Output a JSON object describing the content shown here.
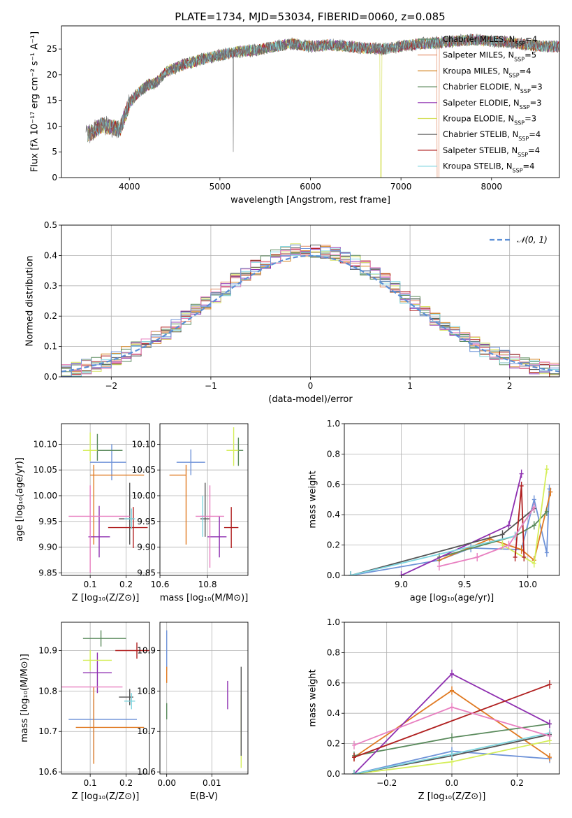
{
  "figure_title": "PLATE=1734, MJD=53034, FIBERID=0060, z=0.085",
  "models": [
    {
      "name": "Chabrier MILES",
      "nssp": "4",
      "color": "#5f8d72"
    },
    {
      "name": "Salpeter MILES",
      "nssp": "5",
      "color": "#e38f6a"
    },
    {
      "name": "Kroupa MILES",
      "nssp": "4",
      "color": "#d48320"
    },
    {
      "name": "Chabrier ELODIE",
      "nssp": "3",
      "color": "#5e8a5c"
    },
    {
      "name": "Salpeter ELODIE",
      "nssp": "3",
      "color": "#8e2fb0"
    },
    {
      "name": "Kroupa ELODIE",
      "nssp": "3",
      "color": "#d6e05e"
    },
    {
      "name": "Chabrier STELIB",
      "nssp": "4",
      "color": "#666666"
    },
    {
      "name": "Salpeter STELIB",
      "nssp": "4",
      "color": "#b02020"
    },
    {
      "name": "Kroupa STELIB",
      "nssp": "4",
      "color": "#7fd6e0"
    }
  ],
  "point_colors": [
    "#6f93d8",
    "#e07a22",
    "#5a8a5c",
    "#8e2fb0",
    "#d5ee5a",
    "#555555",
    "#b02020",
    "#7fd6e0",
    "#e87fc0"
  ],
  "chart_data": [
    {
      "id": "spectrum",
      "type": "line",
      "xlabel": "wavelength [Angstrom, rest frame]",
      "ylabel": "Flux [fλ 10⁻¹⁷ erg cm⁻² s⁻¹ A⁻¹]",
      "xlim": [
        3250,
        8750
      ],
      "ylim": [
        0,
        29.5
      ],
      "xticks": [
        4000,
        5000,
        6000,
        7000,
        8000
      ],
      "yticks": [
        0,
        5,
        10,
        15,
        20,
        25
      ],
      "x": [
        3550,
        3700,
        3800,
        3900,
        3950,
        4000,
        4100,
        4200,
        4300,
        4400,
        4600,
        4800,
        5000,
        5200,
        5400,
        5600,
        5800,
        6000,
        6200,
        6400,
        6600,
        6800,
        7000,
        7200,
        7400,
        7600,
        7800,
        8000,
        8200,
        8400,
        8600
      ],
      "y": [
        8.5,
        10.2,
        9.8,
        9.5,
        12.0,
        14.5,
        16.5,
        18.0,
        18.5,
        20.5,
        22.0,
        23.0,
        23.8,
        24.5,
        24.8,
        25.5,
        26.0,
        25.5,
        25.8,
        25.5,
        25.2,
        25.0,
        25.5,
        26.0,
        26.2,
        26.5,
        26.8,
        26.5,
        26.3,
        25.8,
        25.5
      ],
      "grid": false,
      "legend": "top-right"
    },
    {
      "id": "residuals",
      "type": "histogram",
      "xlabel": "(data-model)/error",
      "ylabel": "Normed distribution",
      "xlim": [
        -2.5,
        2.5
      ],
      "ylim": [
        0,
        0.5
      ],
      "xticks": [
        -2,
        -1,
        0,
        1,
        2
      ],
      "yticks": [
        0.0,
        0.1,
        0.2,
        0.3,
        0.4,
        0.5
      ],
      "curve_label": "𝒩(0, 1)",
      "grid": true,
      "legend": "top-right"
    },
    {
      "id": "age_vs_Z",
      "type": "scatter",
      "xlabel": "Z [log₁₀(Z/Z⊙)]",
      "ylabel": "age  [log₁₀(age/yr)]",
      "xlim": [
        0.02,
        0.265
      ],
      "ylim": [
        9.845,
        10.14
      ],
      "xticks": [
        0.1,
        0.2
      ],
      "yticks": [
        9.85,
        9.9,
        9.95,
        10.0,
        10.05,
        10.1
      ],
      "points": [
        {
          "x": 0.16,
          "y": 10.065,
          "xerr": [
            0.06,
            0.04
          ],
          "yerr": [
            0.035,
            0.035
          ]
        },
        {
          "x": 0.11,
          "y": 10.04,
          "xerr": [
            0.01,
            0.14
          ],
          "yerr": [
            0.135,
            0.02
          ]
        },
        {
          "x": 0.12,
          "y": 10.088,
          "xerr": [
            0.03,
            0.07
          ],
          "yerr": [
            0.02,
            0.032
          ]
        },
        {
          "x": 0.125,
          "y": 9.92,
          "xerr": [
            0.03,
            0.03
          ],
          "yerr": [
            0.04,
            0.06
          ]
        },
        {
          "x": 0.1,
          "y": 10.088,
          "xerr": [
            0.02,
            0.02
          ],
          "yerr": [
            0.02,
            0.035
          ]
        },
        {
          "x": 0.21,
          "y": 9.955,
          "xerr": [
            0.03,
            0.01
          ],
          "yerr": [
            0.05,
            0.07
          ]
        },
        {
          "x": 0.22,
          "y": 9.938,
          "xerr": [
            0.07,
            0.04
          ],
          "yerr": [
            0.04,
            0.04
          ]
        },
        {
          "x": 0.215,
          "y": 9.955,
          "xerr": [
            0.02,
            0.01
          ],
          "yerr": [
            0.02,
            0.02
          ]
        },
        {
          "x": 0.1,
          "y": 9.96,
          "xerr": [
            0.06,
            0.11
          ],
          "yerr": [
            0.11,
            0.06
          ]
        }
      ]
    },
    {
      "id": "age_vs_mass",
      "type": "scatter",
      "xlabel": "mass [log₁₀(M/M⊙)]",
      "ylabel": "",
      "xlim": [
        10.6,
        10.97
      ],
      "ylim": [
        9.845,
        10.14
      ],
      "xticks": [
        10.6,
        10.8
      ],
      "yticks": [
        9.85,
        9.9,
        9.95,
        10.0,
        10.05,
        10.1
      ],
      "points": [
        {
          "x": 10.73,
          "y": 10.065,
          "xerr": [
            0.06,
            0.06
          ],
          "yerr": [
            0.025,
            0.025
          ]
        },
        {
          "x": 10.71,
          "y": 10.04,
          "xerr": [
            0.07,
            0.0
          ],
          "yerr": [
            0.135,
            0.02
          ]
        },
        {
          "x": 10.93,
          "y": 10.088,
          "xerr": [
            0.0,
            0.02
          ],
          "yerr": [
            0.03,
            0.025
          ]
        },
        {
          "x": 10.85,
          "y": 9.92,
          "xerr": [
            0.05,
            0.03
          ],
          "yerr": [
            0.04,
            0.04
          ]
        },
        {
          "x": 10.91,
          "y": 10.088,
          "xerr": [
            0.03,
            0.02
          ],
          "yerr": [
            0.03,
            0.045
          ]
        },
        {
          "x": 10.79,
          "y": 9.955,
          "xerr": [
            0.02,
            0.02
          ],
          "yerr": [
            0.035,
            0.07
          ]
        },
        {
          "x": 10.9,
          "y": 9.938,
          "xerr": [
            0.03,
            0.03
          ],
          "yerr": [
            0.04,
            0.04
          ]
        },
        {
          "x": 10.78,
          "y": 9.96,
          "xerr": [
            0.01,
            0.01
          ],
          "yerr": [
            0.04,
            0.04
          ]
        },
        {
          "x": 10.81,
          "y": 9.96,
          "xerr": [
            0.06,
            0.06
          ],
          "yerr": [
            0.1,
            0.06
          ]
        }
      ]
    },
    {
      "id": "weight_vs_age",
      "type": "line",
      "xlabel": "age  [log₁₀(age/yr)]",
      "ylabel": "mass weight",
      "xlim": [
        8.55,
        10.25
      ],
      "ylim": [
        0,
        1.0
      ],
      "xticks": [
        9.0,
        9.5,
        10.0
      ],
      "yticks": [
        0.0,
        0.2,
        0.4,
        0.6,
        0.8,
        1.0
      ],
      "grid": true,
      "series": [
        {
          "x": [
            8.6,
            9.3,
            9.55,
            9.95,
            10.05,
            10.15,
            10.17
          ],
          "y": [
            0.0,
            0.1,
            0.18,
            0.17,
            0.5,
            0.15,
            0.57
          ]
        },
        {
          "x": [
            9.3,
            9.7,
            9.95,
            10.05,
            10.18
          ],
          "y": [
            0.1,
            0.24,
            0.17,
            0.1,
            0.55
          ]
        },
        {
          "x": [
            9.3,
            9.9,
            10.05,
            10.15
          ],
          "y": [
            0.12,
            0.26,
            0.33,
            0.42
          ]
        },
        {
          "x": [
            9.0,
            9.85,
            9.95
          ],
          "y": [
            0.0,
            0.33,
            0.67
          ]
        },
        {
          "x": [
            9.8,
            10.05,
            10.15
          ],
          "y": [
            0.2,
            0.08,
            0.7
          ]
        },
        {
          "x": [
            8.6,
            9.8,
            10.05
          ],
          "y": [
            0.0,
            0.27,
            0.44
          ]
        },
        {
          "x": [
            9.9,
            9.95,
            9.97
          ],
          "y": [
            0.12,
            0.59,
            0.12
          ]
        },
        {
          "x": [
            8.6,
            9.9,
            10.05
          ],
          "y": [
            0.0,
            0.26,
            0.45
          ]
        },
        {
          "x": [
            9.3,
            9.6,
            9.85,
            10.05
          ],
          "y": [
            0.06,
            0.12,
            0.2,
            0.45
          ]
        }
      ]
    },
    {
      "id": "mass_vs_Z",
      "type": "scatter",
      "xlabel": "Z [log₁₀(Z/Z⊙)]",
      "ylabel": "mass [log₁₀(M/M⊙)]",
      "xlim": [
        0.02,
        0.265
      ],
      "ylim": [
        10.595,
        10.97
      ],
      "xticks": [
        0.1,
        0.2
      ],
      "yticks": [
        10.6,
        10.7,
        10.8,
        10.9
      ],
      "points": [
        {
          "x": 0.11,
          "y": 10.73,
          "xerr": [
            0.07,
            0.12
          ],
          "yerr": [
            0.1,
            0.05
          ]
        },
        {
          "x": 0.11,
          "y": 10.71,
          "xerr": [
            0.05,
            0.14
          ],
          "yerr": [
            0.09,
            0.1
          ]
        },
        {
          "x": 0.13,
          "y": 10.93,
          "xerr": [
            0.05,
            0.07
          ],
          "yerr": [
            0.02,
            0.02
          ]
        },
        {
          "x": 0.12,
          "y": 10.845,
          "xerr": [
            0.04,
            0.04
          ],
          "yerr": [
            0.05,
            0.05
          ]
        },
        {
          "x": 0.1,
          "y": 10.876,
          "xerr": [
            0.02,
            0.06
          ],
          "yerr": [
            0.025,
            0.025
          ]
        },
        {
          "x": 0.21,
          "y": 10.785,
          "xerr": [
            0.03,
            0.01
          ],
          "yerr": [
            0.02,
            0.02
          ]
        },
        {
          "x": 0.23,
          "y": 10.9,
          "xerr": [
            0.06,
            0.05
          ],
          "yerr": [
            0.02,
            0.02
          ]
        },
        {
          "x": 0.215,
          "y": 10.775,
          "xerr": [
            0.02,
            0.01
          ],
          "yerr": [
            0.02,
            0.02
          ]
        },
        {
          "x": 0.11,
          "y": 10.81,
          "xerr": [
            0.09,
            0.08
          ],
          "yerr": [
            0.0,
            0.0
          ]
        }
      ]
    },
    {
      "id": "mass_vs_ebv",
      "type": "scatter",
      "xlabel": "E(B-V)",
      "ylabel": "",
      "xlim": [
        -0.0015,
        0.018
      ],
      "ylim": [
        10.595,
        10.97
      ],
      "xticks": [
        0.0,
        0.01
      ],
      "yticks": [
        10.6,
        10.7,
        10.8,
        10.9
      ],
      "points": [
        {
          "x": 0.0,
          "y": 10.9,
          "xerr": [
            0,
            0
          ],
          "yerr": [
            0.05,
            0.05
          ]
        },
        {
          "x": 0.0,
          "y": 10.84,
          "xerr": [
            0,
            0
          ],
          "yerr": [
            0.02,
            0.02
          ]
        },
        {
          "x": 0.0,
          "y": 10.75,
          "xerr": [
            0,
            0
          ],
          "yerr": [
            0.02,
            0.02
          ]
        },
        {
          "x": 0.0135,
          "y": 10.79,
          "xerr": [
            0,
            0
          ],
          "yerr": [
            0.035,
            0.035
          ]
        },
        {
          "x": 0.0165,
          "y": 10.7,
          "xerr": [
            0,
            0
          ],
          "yerr": [
            0.09,
            0.09
          ]
        },
        {
          "x": 0.0165,
          "y": 10.75,
          "xerr": [
            0,
            0
          ],
          "yerr": [
            0.11,
            0.11
          ]
        }
      ]
    },
    {
      "id": "weight_vs_Z",
      "type": "line",
      "xlabel": "Z [log₁₀(Z/Z⊙)]",
      "ylabel": "mass weight",
      "xlim": [
        -0.33,
        0.33
      ],
      "ylim": [
        0,
        1.0
      ],
      "xticks": [
        -0.2,
        0.0,
        0.2
      ],
      "yticks": [
        0.0,
        0.2,
        0.4,
        0.6,
        0.8,
        1.0
      ],
      "grid": true,
      "series": [
        {
          "x": [
            -0.3,
            0.0,
            0.3
          ],
          "y": [
            0.0,
            0.15,
            0.1
          ]
        },
        {
          "x": [
            -0.3,
            0.0,
            0.3
          ],
          "y": [
            0.11,
            0.55,
            0.11
          ]
        },
        {
          "x": [
            -0.3,
            0.0,
            0.3
          ],
          "y": [
            0.12,
            0.24,
            0.33
          ]
        },
        {
          "x": [
            -0.3,
            0.0,
            0.3
          ],
          "y": [
            0.0,
            0.66,
            0.33
          ]
        },
        {
          "x": [
            -0.3,
            0.0,
            0.3
          ],
          "y": [
            0.0,
            0.08,
            0.22
          ]
        },
        {
          "x": [
            -0.3,
            0.0,
            0.3
          ],
          "y": [
            0.0,
            0.12,
            0.26
          ]
        },
        {
          "x": [
            -0.3,
            0.3
          ],
          "y": [
            0.11,
            0.59
          ]
        },
        {
          "x": [
            -0.3,
            0.0,
            0.3
          ],
          "y": [
            0.0,
            0.13,
            0.27
          ]
        },
        {
          "x": [
            -0.3,
            0.0,
            0.3
          ],
          "y": [
            0.19,
            0.44,
            0.25
          ]
        }
      ]
    }
  ]
}
